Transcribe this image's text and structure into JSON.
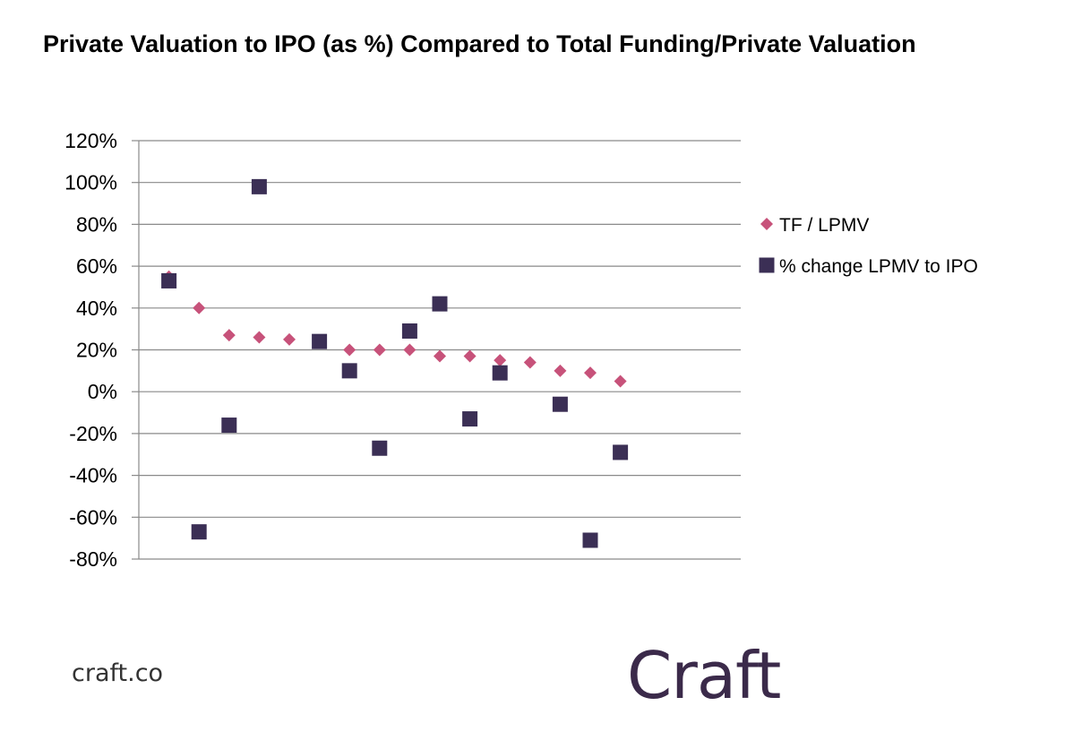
{
  "page": {
    "footer_url": "craft.co",
    "brand": "Craft"
  },
  "chart_data": {
    "type": "scatter",
    "title": "Private Valuation to IPO (as %) Compared to Total Funding/Private Valuation",
    "xlabel": "",
    "ylabel": "",
    "ylim": [
      -80,
      120
    ],
    "yticks": [
      120,
      100,
      80,
      60,
      40,
      20,
      0,
      -20,
      -40,
      -60,
      -80
    ],
    "y_tick_suffix": "%",
    "x": [
      1,
      2,
      3,
      4,
      5,
      6,
      7,
      8,
      9,
      10,
      11,
      12,
      13,
      14,
      15,
      16
    ],
    "xlim": [
      0,
      20
    ],
    "grid": "horizontal",
    "legend_position": "right",
    "series": [
      {
        "name": "TF / LPMV",
        "marker": "diamond",
        "color": "#c7527a",
        "values": [
          55,
          40,
          27,
          26,
          25,
          null,
          20,
          20,
          20,
          17,
          17,
          15,
          14,
          10,
          9,
          5
        ]
      },
      {
        "name": "% change LPMV to IPO",
        "marker": "square",
        "color": "#3b2f55",
        "values": [
          53,
          -67,
          -16,
          98,
          null,
          24,
          10,
          -27,
          29,
          42,
          -13,
          9,
          null,
          -6,
          -71,
          -29
        ]
      }
    ]
  }
}
